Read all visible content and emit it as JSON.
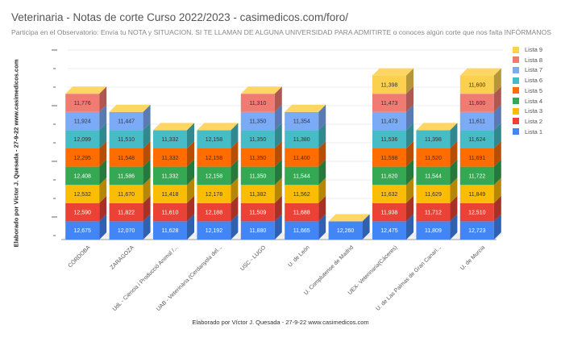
{
  "chart_data": {
    "type": "bar",
    "stacked": true,
    "three_d": true,
    "title": "Veterinaria - Notas de corte Curso 2022/2023 - casimedicos.com/foro/",
    "subtitle": "Participa en el Observatorio: Envía tu NOTA y SITUACION. SI TE LLAMAN DE ALGUNA UNIVERSIDAD PARA ADMITIRTE o conoces algún corte que nos falta INFÓRMANOS",
    "ylabel": "Elaborado por Víctor J. Quesada - 27-9-22  www.casimedicos.com",
    "xlabel": "Elaborado por Víctor J. Quesada - 27-9-22  www.casimedicos.com",
    "legend_position": "right",
    "categories": [
      "CÓRDOBA",
      "ZARAGOZA",
      "UdL - Ciència i Producció Animal /...",
      "UAB - Veterinària (Cerdanyola del...",
      "USC - LUGO",
      "U. de León",
      "U. Complutense de Madrid",
      "UEX- Veterinaria(Cáceres)",
      "U. de Las Palmas de Gran Canari...",
      "U. de Murcia"
    ],
    "series": [
      {
        "name": "Lista 1",
        "color": "#4285f4",
        "values": [
          12675,
          12070,
          11628,
          12192,
          11880,
          11665,
          12260,
          12475,
          11809,
          12723
        ]
      },
      {
        "name": "Lista 2",
        "color": "#ea4335",
        "values": [
          12590,
          11822,
          11610,
          12188,
          11509,
          11688,
          null,
          11938,
          11712,
          12510
        ]
      },
      {
        "name": "Lista 3",
        "color": "#fbbc04",
        "values": [
          12532,
          11670,
          11418,
          12178,
          11382,
          11562,
          null,
          11632,
          11629,
          11849
        ]
      },
      {
        "name": "Lista 4",
        "color": "#34a853",
        "values": [
          12408,
          11586,
          11332,
          12158,
          11350,
          11544,
          null,
          11620,
          11544,
          11722
        ]
      },
      {
        "name": "Lista 5",
        "color": "#ff6d01",
        "values": [
          12295,
          11548,
          11332,
          12158,
          11350,
          11400,
          null,
          11598,
          11520,
          11691
        ]
      },
      {
        "name": "Lista 6",
        "color": "#46bdc6",
        "values": [
          12099,
          11510,
          11332,
          12158,
          11350,
          11380,
          null,
          11536,
          11398,
          11624
        ]
      },
      {
        "name": "Lista 7",
        "color": "#7baaf7",
        "values": [
          11924,
          11447,
          null,
          null,
          11350,
          11354,
          null,
          11473,
          null,
          11611
        ]
      },
      {
        "name": "Lista 8",
        "color": "#f07b72",
        "values": [
          11776,
          null,
          null,
          null,
          11310,
          null,
          null,
          11473,
          null,
          11600
        ]
      },
      {
        "name": "Lista 9",
        "color": "#fcd04f",
        "values": [
          null,
          null,
          null,
          null,
          null,
          null,
          null,
          11398,
          null,
          11600
        ]
      }
    ],
    "display_labels": {
      "Lista 1": [
        "12,675",
        "12,070",
        "11,628",
        "12,192",
        "11,880",
        "11,665",
        "12,260",
        "12,475",
        "11,809",
        "12,723"
      ],
      "Lista 2": [
        "12,590",
        "11,822",
        "11,610",
        "12,188",
        "11,509",
        "11,688",
        null,
        "11,938",
        "11,712",
        "12,510"
      ],
      "Lista 3": [
        "12,532",
        "11,670",
        "11,418",
        "12,178",
        "11,382",
        "11,562",
        null,
        "11,632",
        "11,629",
        "11,849"
      ],
      "Lista 4": [
        "12,408",
        "11,586",
        "11,332",
        "12,158",
        "11,350",
        "11,544",
        null,
        "11,620",
        "11,544",
        "11,722"
      ],
      "Lista 5": [
        "12,295",
        "11,548",
        "11,332",
        "12,158",
        "11,350",
        "11,400",
        null,
        "11,598",
        "11,520",
        "11,691"
      ],
      "Lista 6": [
        "12,099",
        "11,510",
        "11,332",
        "12,158",
        "11,350",
        "11,380",
        null,
        "11,536",
        "11,398",
        "11,624"
      ],
      "Lista 7": [
        "11,924",
        "11,447",
        null,
        null,
        "11,350",
        "11,354",
        null,
        "11,473",
        null,
        "11,611"
      ],
      "Lista 8": [
        "11,776",
        null,
        null,
        null,
        "11,310",
        null,
        null,
        "11,473",
        null,
        "11,600"
      ],
      "Lista 9": [
        null,
        null,
        null,
        null,
        null,
        null,
        null,
        "11,398",
        null,
        "11,600"
      ]
    },
    "legend": [
      "Lista 9",
      "Lista 8",
      "Lista 7",
      "Lista 6",
      "Lista 5",
      "Lista 4",
      "Lista 3",
      "Lista 2",
      "Lista 1"
    ],
    "grid": true,
    "y_tick_count": 11
  }
}
